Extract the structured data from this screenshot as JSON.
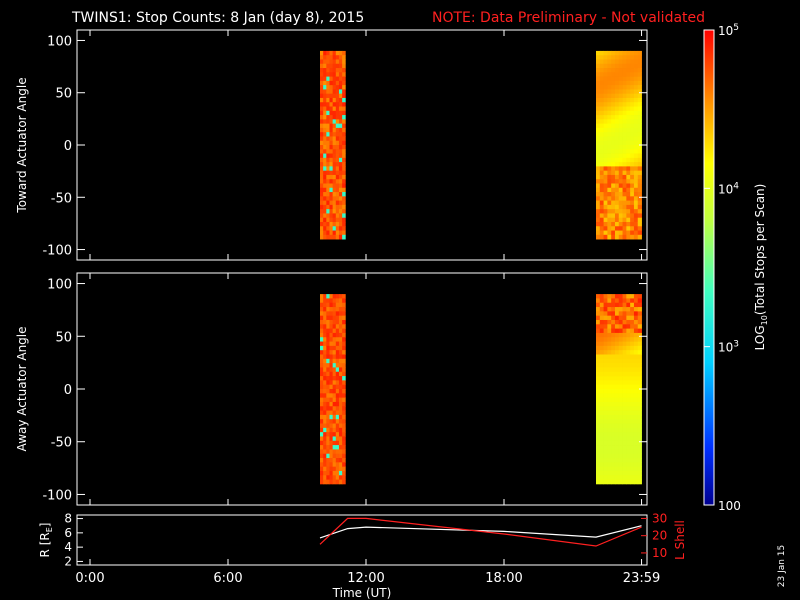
{
  "title": {
    "main": "TWINS1: Stop Counts:  8 Jan (day   8), 2015",
    "note": "NOTE: Data Preliminary - Not validated",
    "note_color": "#ff2020"
  },
  "side_label": "23 Jan 15",
  "chart_data": [
    {
      "type": "heatmap",
      "name": "toward",
      "ylabel": "Toward Actuator Angle",
      "ylim": [
        -110,
        110
      ],
      "yticks": [
        100,
        50,
        0,
        -50,
        -100
      ],
      "ytick_labels": [
        "100",
        "50",
        "0",
        "-50",
        "-100"
      ],
      "xlim_hours": [
        0,
        24
      ],
      "blocks": [
        {
          "t_start_h": 10.0,
          "t_end_h": 11.1,
          "angle_min": -90,
          "angle_max": 90,
          "log10_counts_range": [
            4.2,
            4.9
          ]
        },
        {
          "t_start_h": 22.0,
          "t_end_h": 23.98,
          "angle_min": -90,
          "angle_max": 90,
          "log10_counts_range": [
            3.7,
            4.8
          ]
        }
      ]
    },
    {
      "type": "heatmap",
      "name": "away",
      "ylabel": "Away Actuator Angle",
      "ylim": [
        -110,
        110
      ],
      "yticks": [
        100,
        50,
        0,
        -50,
        -100
      ],
      "ytick_labels": [
        "100",
        "50",
        "0",
        "-50",
        "-100"
      ],
      "xlim_hours": [
        0,
        24
      ],
      "blocks": [
        {
          "t_start_h": 10.0,
          "t_end_h": 11.1,
          "angle_min": -90,
          "angle_max": 90,
          "log10_counts_range": [
            4.3,
            4.9
          ]
        },
        {
          "t_start_h": 22.0,
          "t_end_h": 23.98,
          "angle_min": -90,
          "angle_max": 90,
          "log10_counts_range": [
            3.7,
            4.9
          ]
        }
      ]
    },
    {
      "type": "line",
      "name": "orbit",
      "ylabel_left": "R [R",
      "ylabel_left_sub": "E",
      "ylabel_left_end": "]",
      "ylabel_right": "L Shell",
      "ylim_left": [
        1.5,
        8.5
      ],
      "yticks_left": [
        8,
        6,
        4,
        2
      ],
      "ytick_labels_left": [
        "8",
        "6",
        "4",
        "2"
      ],
      "ylim_right": [
        3,
        32
      ],
      "yticks_right": [
        30,
        20,
        10
      ],
      "ytick_labels_right": [
        "30",
        "20",
        "10"
      ],
      "xlabel": "Time (UT)",
      "xticks_hours": [
        0,
        6,
        12,
        18,
        23.98
      ],
      "xtick_labels": [
        "0:00",
        "6:00",
        "12:00",
        "18:00",
        "23:59"
      ],
      "series": [
        {
          "color": "#ffffff",
          "axis": "left",
          "x": [
            10.0,
            11.2,
            12.0,
            18.0,
            22.0,
            23.98
          ],
          "y": [
            5.3,
            6.6,
            6.8,
            6.2,
            5.4,
            7.0
          ]
        },
        {
          "color": "#ff2020",
          "axis": "right",
          "x": [
            10.0,
            11.2,
            12.0,
            18.0,
            22.0,
            23.98
          ],
          "y": [
            15,
            30,
            30,
            21,
            14,
            25
          ]
        }
      ]
    }
  ],
  "colorbar": {
    "label": "LOG",
    "label_sub": "10",
    "label_rest": "(Total Stops per Scan)",
    "range_log10": [
      2,
      5
    ],
    "ticks": [
      {
        "value_log10": 5,
        "base": "10",
        "exp": "5"
      },
      {
        "value_log10": 4,
        "base": "10",
        "exp": "4"
      },
      {
        "value_log10": 3,
        "base": "10",
        "exp": "3"
      },
      {
        "value_log10": 2,
        "text": "100"
      }
    ]
  }
}
